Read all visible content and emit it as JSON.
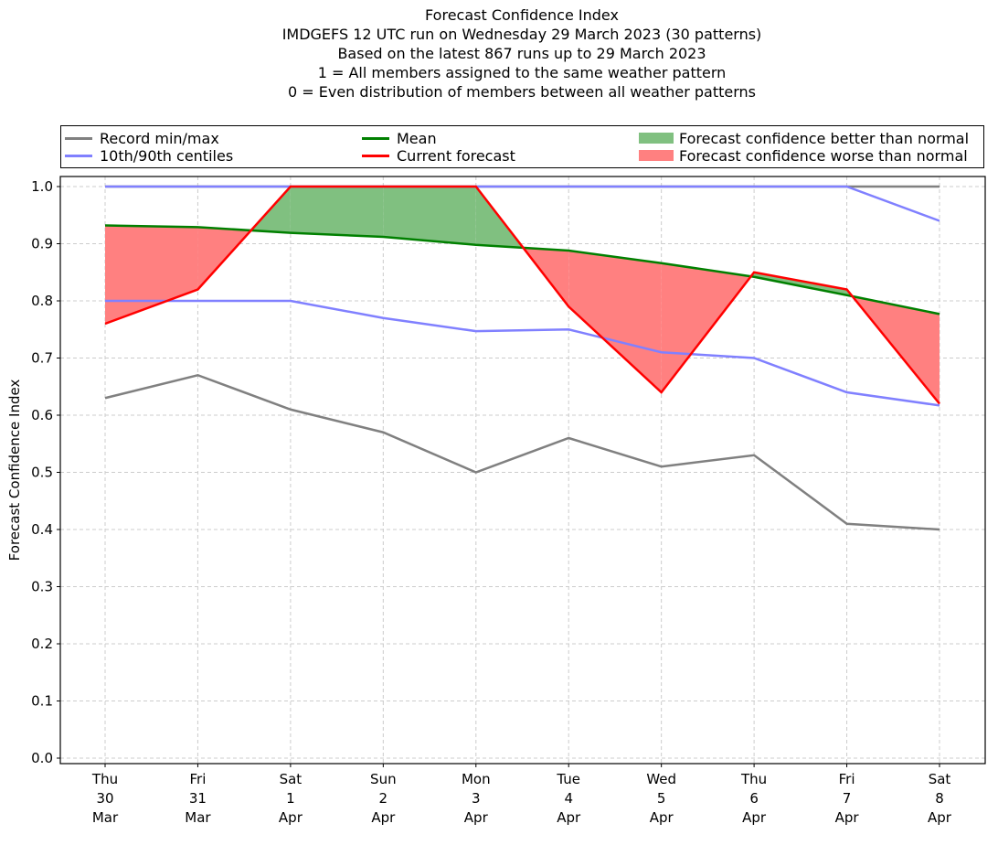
{
  "chart_data": {
    "type": "line",
    "title_lines": [
      "Forecast Confidence Index",
      "IMDGEFS 12 UTC run on Wednesday 29 March 2023 (30 patterns)",
      "Based on the latest 867 runs up to 29 March 2023",
      "1 = All members assigned to the same weather pattern",
      "0 = Even distribution of members between all weather patterns"
    ],
    "ylabel": "Forecast Confidence Index",
    "xlabel": "",
    "ylim": [
      0.0,
      1.0
    ],
    "yticks": [
      "0.0",
      "0.1",
      "0.2",
      "0.3",
      "0.4",
      "0.5",
      "0.6",
      "0.7",
      "0.8",
      "0.9",
      "1.0"
    ],
    "grid": true,
    "categories": [
      [
        "Thu",
        "30",
        "Mar"
      ],
      [
        "Fri",
        "31",
        "Mar"
      ],
      [
        "Sat",
        "1",
        "Apr"
      ],
      [
        "Sun",
        "2",
        "Apr"
      ],
      [
        "Mon",
        "3",
        "Apr"
      ],
      [
        "Tue",
        "4",
        "Apr"
      ],
      [
        "Wed",
        "5",
        "Apr"
      ],
      [
        "Thu",
        "6",
        "Apr"
      ],
      [
        "Fri",
        "7",
        "Apr"
      ],
      [
        "Sat",
        "8",
        "Apr"
      ]
    ],
    "series": [
      {
        "name": "Record min",
        "legend": "Record min/max",
        "color": "#808080",
        "values": [
          0.63,
          0.67,
          0.61,
          0.57,
          0.5,
          0.56,
          0.51,
          0.53,
          0.41,
          0.4
        ]
      },
      {
        "name": "Record max",
        "color": "#808080",
        "values": [
          1.0,
          1.0,
          1.0,
          1.0,
          1.0,
          1.0,
          1.0,
          1.0,
          1.0,
          1.0
        ]
      },
      {
        "name": "10th centile",
        "legend": "10th/90th centiles",
        "color": "#8080ff",
        "values": [
          0.8,
          0.8,
          0.8,
          0.77,
          0.747,
          0.75,
          0.71,
          0.7,
          0.64,
          0.617
        ]
      },
      {
        "name": "90th centile",
        "color": "#8080ff",
        "values": [
          1.0,
          1.0,
          1.0,
          1.0,
          1.0,
          1.0,
          1.0,
          1.0,
          1.0,
          0.94
        ]
      },
      {
        "name": "Mean",
        "legend": "Mean",
        "color": "#008000",
        "values": [
          0.932,
          0.929,
          0.919,
          0.912,
          0.898,
          0.888,
          0.866,
          0.842,
          0.81,
          0.777
        ]
      },
      {
        "name": "Current forecast",
        "legend": "Current forecast",
        "color": "#ff0000",
        "values": [
          0.76,
          0.82,
          1.0,
          1.0,
          1.0,
          0.79,
          0.64,
          0.85,
          0.82,
          0.62
        ]
      }
    ],
    "fills": [
      {
        "name": "Forecast confidence better than normal",
        "color": "#80c080",
        "condition": "current > mean"
      },
      {
        "name": "Forecast confidence worse than normal",
        "color": "#ff8080",
        "condition": "current < mean"
      }
    ],
    "legend_placement": "top (above plot, 3 columns)"
  },
  "legend": {
    "items": [
      {
        "label": "Record min/max",
        "kind": "line",
        "color": "#808080"
      },
      {
        "label": "10th/90th centiles",
        "kind": "line",
        "color": "#8080ff"
      },
      {
        "label": "Mean",
        "kind": "line",
        "color": "#008000"
      },
      {
        "label": "Current forecast",
        "kind": "line",
        "color": "#ff0000"
      },
      {
        "label": "Forecast confidence better than normal",
        "kind": "patch",
        "color": "#80c080"
      },
      {
        "label": "Forecast confidence worse than normal",
        "kind": "patch",
        "color": "#ff8080"
      }
    ]
  }
}
